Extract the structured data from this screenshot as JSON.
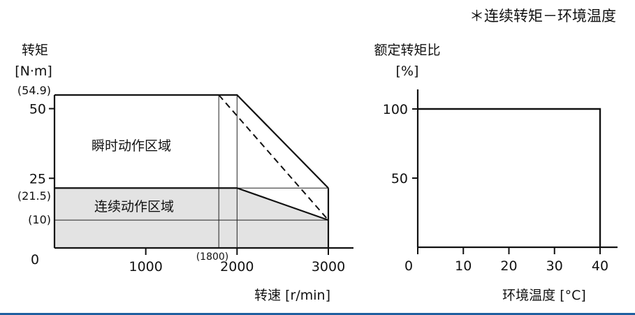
{
  "title": "＊连续转矩－环境温度",
  "chart_data": [
    {
      "type": "line",
      "ylabel": "转矩",
      "yunit": "[N·m]",
      "xlabel": "转速 [r/min]",
      "xlim": [
        0,
        3000
      ],
      "ylim": [
        0,
        54.9
      ],
      "x_ticks": [
        1000,
        2000,
        3000
      ],
      "y_ticks": [
        25,
        50
      ],
      "origin_label": "0",
      "annotations": {
        "y_peak": "(54.9)",
        "y_cont": "(21.5)",
        "y_low": "(10)",
        "x_knee": "(1800)"
      },
      "regions": {
        "instant": "瞬时动作区域",
        "continuous": "连续动作区域"
      },
      "series": [
        {
          "name": "瞬时动作区域",
          "points": [
            [
              0,
              54.9
            ],
            [
              2000,
              54.9
            ],
            [
              3000,
              21.5
            ]
          ]
        },
        {
          "points": [
            [
              1800,
              54.9
            ],
            [
              3000,
              10
            ]
          ],
          "style": "dashed"
        },
        {
          "name": "连续动作区域",
          "points": [
            [
              0,
              21.5
            ],
            [
              2000,
              21.5
            ],
            [
              3000,
              10
            ]
          ]
        }
      ],
      "guide_lines": {
        "vertical_x": [
          1800,
          2000
        ],
        "horizontal_y": [
          21.5,
          10
        ]
      }
    },
    {
      "type": "line",
      "ylabel": "额定转矩比",
      "yunit": "[%]",
      "xlabel": "环境温度 [°C]",
      "xlim": [
        0,
        40
      ],
      "ylim": [
        0,
        110
      ],
      "x_ticks": [
        0,
        10,
        20,
        30,
        40
      ],
      "y_ticks": [
        50,
        100
      ],
      "series": [
        {
          "points": [
            [
              0,
              100
            ],
            [
              40,
              100
            ],
            [
              40,
              0
            ]
          ]
        }
      ]
    }
  ]
}
